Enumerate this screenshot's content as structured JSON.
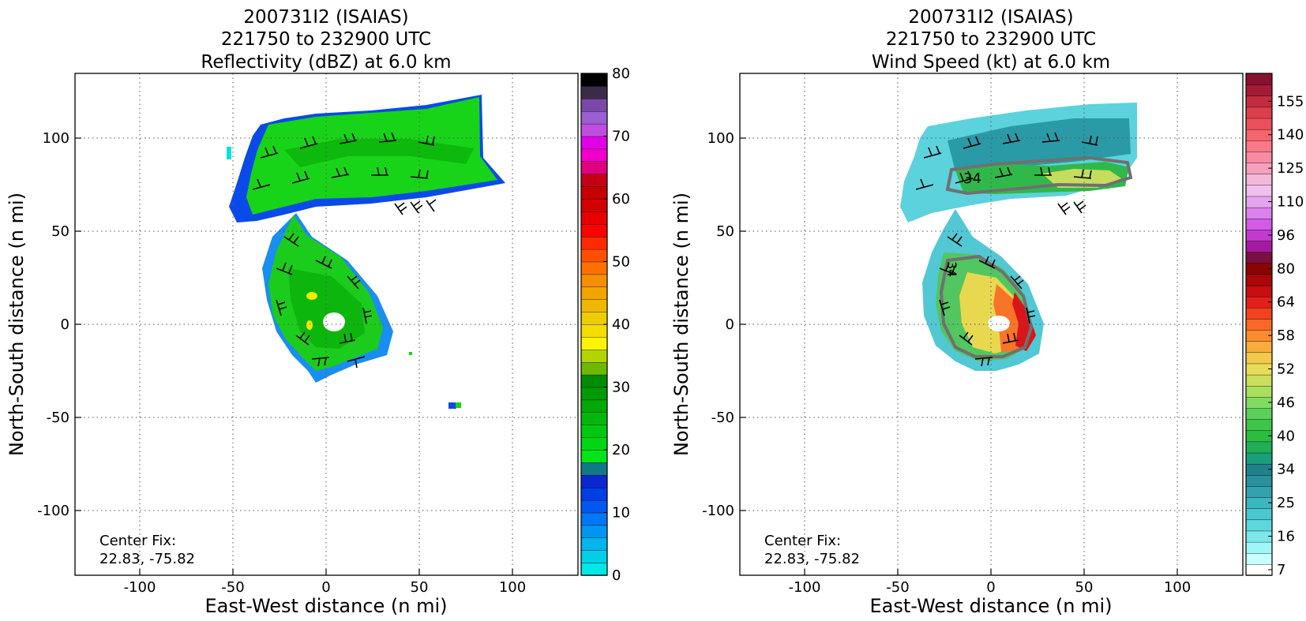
{
  "chart_data": [
    {
      "type": "heatmap",
      "title_lines": [
        "200731I2 (ISAIAS)",
        "221750 to 232900 UTC",
        "Reflectivity (dBZ) at 6.0 km"
      ],
      "xlabel": "East-West distance (n mi)",
      "ylabel": "North-South distance (n mi)",
      "xlim": [
        -135,
        135
      ],
      "ylim": [
        -135,
        135
      ],
      "xticks": [
        -100,
        -50,
        0,
        50,
        100
      ],
      "yticks": [
        -100,
        -50,
        0,
        50,
        100
      ],
      "grid": true,
      "annotation_lines": [
        "Center Fix:",
        "22.83, -75.82"
      ],
      "colorbar": {
        "colors": [
          "#00e7e7",
          "#00cfe6",
          "#00b4ec",
          "#0095f0",
          "#0077f4",
          "#0058ef",
          "#003fe4",
          "#0a28cf",
          "#0f7a86",
          "#00e51a",
          "#00d614",
          "#00c810",
          "#00b80c",
          "#00a808",
          "#009a04",
          "#008c00",
          "#6fb800",
          "#b4d400",
          "#fff400",
          "#f3de00",
          "#edcd00",
          "#eeb800",
          "#f2a400",
          "#f58f00",
          "#ff7000",
          "#ff4f00",
          "#ff2a00",
          "#ff0000",
          "#e80000",
          "#d40000",
          "#c60000",
          "#c30016",
          "#e0007e",
          "#f200ca",
          "#e100e6",
          "#bf4ee0",
          "#9b5fd0",
          "#7a48a8",
          "#3c2a4a",
          "#000000"
        ],
        "tick_values": [
          0,
          10,
          20,
          30,
          40,
          50,
          60,
          70,
          80
        ],
        "tick_labels": [
          "0",
          "10",
          "20",
          "30",
          "40",
          "50",
          "60",
          "70",
          "80"
        ]
      },
      "field_description": "radar reflectivity field: spiral band wrapping around a small eye near center; wind barbs overlaid"
    },
    {
      "type": "heatmap",
      "title_lines": [
        "200731I2 (ISAIAS)",
        "221750 to 232900 UTC",
        "Wind Speed (kt) at 6.0 km"
      ],
      "xlabel": "East-West distance (n mi)",
      "ylabel": "North-South distance (n mi)",
      "xlim": [
        -135,
        135
      ],
      "ylim": [
        -135,
        135
      ],
      "xticks": [
        -100,
        -50,
        0,
        50,
        100
      ],
      "yticks": [
        -100,
        -50,
        0,
        50,
        100
      ],
      "grid": true,
      "annotation_lines": [
        "Center Fix:",
        "22.83, -75.82"
      ],
      "contour_labels": [
        "34",
        "34"
      ],
      "colorbar": {
        "colors": [
          "#ffffff",
          "#c8ffff",
          "#a0f6f6",
          "#7ce8ea",
          "#5cd8dd",
          "#48c8cf",
          "#3cb6bf",
          "#32a2ad",
          "#2a909c",
          "#20808c",
          "#1c9e7a",
          "#20ae56",
          "#2cbc40",
          "#3ec64a",
          "#5ad05a",
          "#82da62",
          "#a8e05e",
          "#ccdf5c",
          "#e8dc5a",
          "#f4c84a",
          "#f8ac3c",
          "#fa8c30",
          "#f86826",
          "#f24220",
          "#e2201a",
          "#c80e10",
          "#a80808",
          "#8a0404",
          "#7a1040",
          "#a51aa0",
          "#c03ad0",
          "#d25ae6",
          "#dc82ea",
          "#e6a4ee",
          "#eec0f0",
          "#f4b8d8",
          "#f6a0c0",
          "#f88aa4",
          "#fa7888",
          "#f6646e",
          "#ec505c",
          "#dc3e4a",
          "#c22c3e",
          "#a21c36",
          "#8a1030"
        ],
        "tick_values": [
          7,
          16,
          25,
          34,
          40,
          46,
          52,
          58,
          64,
          80,
          96,
          110,
          125,
          140,
          155
        ],
        "tick_labels": [
          "7",
          "16",
          "25",
          "34",
          "40",
          "46",
          "52",
          "58",
          "64",
          "80",
          "96",
          "110",
          "125",
          "140",
          "155"
        ]
      },
      "field_description": "wind speed field: cyan/teal outer bands, green/yellow/red in spiral near center; 34-kt contour; wind barbs overlaid"
    }
  ]
}
